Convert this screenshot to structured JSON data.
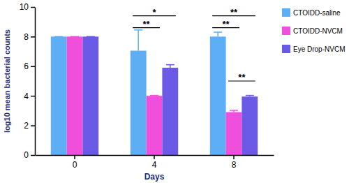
{
  "chart_data": {
    "type": "bar",
    "x_label": "Days",
    "y_label": "log10 mean bacterial counts",
    "categories": [
      "0",
      "4",
      "8"
    ],
    "series": [
      {
        "name": "CTOIDD-saline",
        "color": "#5eaef5",
        "values": [
          8,
          7.05,
          8.0
        ],
        "errors": [
          0,
          1.4,
          0.3
        ]
      },
      {
        "name": "CTOIDD-NVCM",
        "color": "#f04fdc",
        "values": [
          8,
          4.0,
          2.9
        ],
        "errors": [
          0,
          0.03,
          0.12
        ]
      },
      {
        "name": "Eye Drop-NVCM",
        "color": "#6a5ae6",
        "values": [
          8,
          5.9,
          3.95
        ],
        "errors": [
          0,
          0.2,
          0.08
        ]
      }
    ],
    "ylim": [
      0,
      10
    ],
    "yticks": [
      0,
      2,
      4,
      6,
      8,
      10
    ],
    "legend": "right",
    "annotations": [
      {
        "text": "*",
        "category": 1,
        "from": 0,
        "to": 2,
        "y": 9.4
      },
      {
        "text": "**",
        "category": 1,
        "from": 0,
        "to": 1,
        "y": 8.6
      },
      {
        "text": "**",
        "category": 2,
        "from": 0,
        "to": 2,
        "y": 9.4
      },
      {
        "text": "**",
        "category": 2,
        "from": 0,
        "to": 1,
        "y": 8.6
      },
      {
        "text": "**",
        "category": 2,
        "from": 1,
        "to": 2,
        "y": 5.0
      }
    ]
  }
}
